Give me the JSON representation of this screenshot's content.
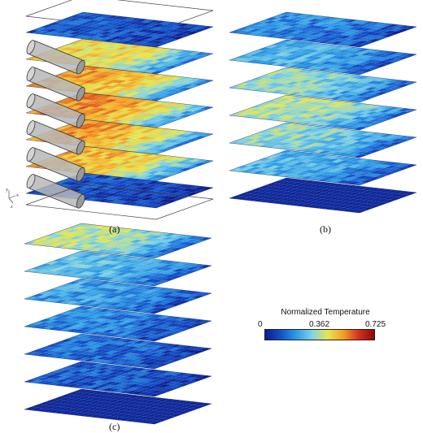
{
  "panels": [
    {
      "label": "(a)",
      "slab_count": 7,
      "levels": [
        0.15,
        0.62,
        0.7,
        0.74,
        0.72,
        0.68,
        0.12
      ],
      "cylinders": 6,
      "has_bounding_box": true
    },
    {
      "label": "(b)",
      "slab_count": 7,
      "levels": [
        0.25,
        0.35,
        0.45,
        0.5,
        0.45,
        0.35,
        0.0
      ]
    },
    {
      "label": "(c)",
      "slab_count": 7,
      "levels": [
        0.5,
        0.38,
        0.3,
        0.25,
        0.2,
        0.16,
        0.0
      ]
    }
  ],
  "colorbar": {
    "title": "Normalized Temperature",
    "min_label": "0",
    "mid_label": "0.362",
    "max_label": "0.725",
    "colors": [
      "#0c1c8c",
      "#1450c8",
      "#2d9be6",
      "#7fd2e6",
      "#e6e650",
      "#f5a023",
      "#d2321e",
      "#8c0a0a"
    ]
  },
  "axes_glyph": {
    "y": "y",
    "x": "x",
    "z": "z"
  }
}
